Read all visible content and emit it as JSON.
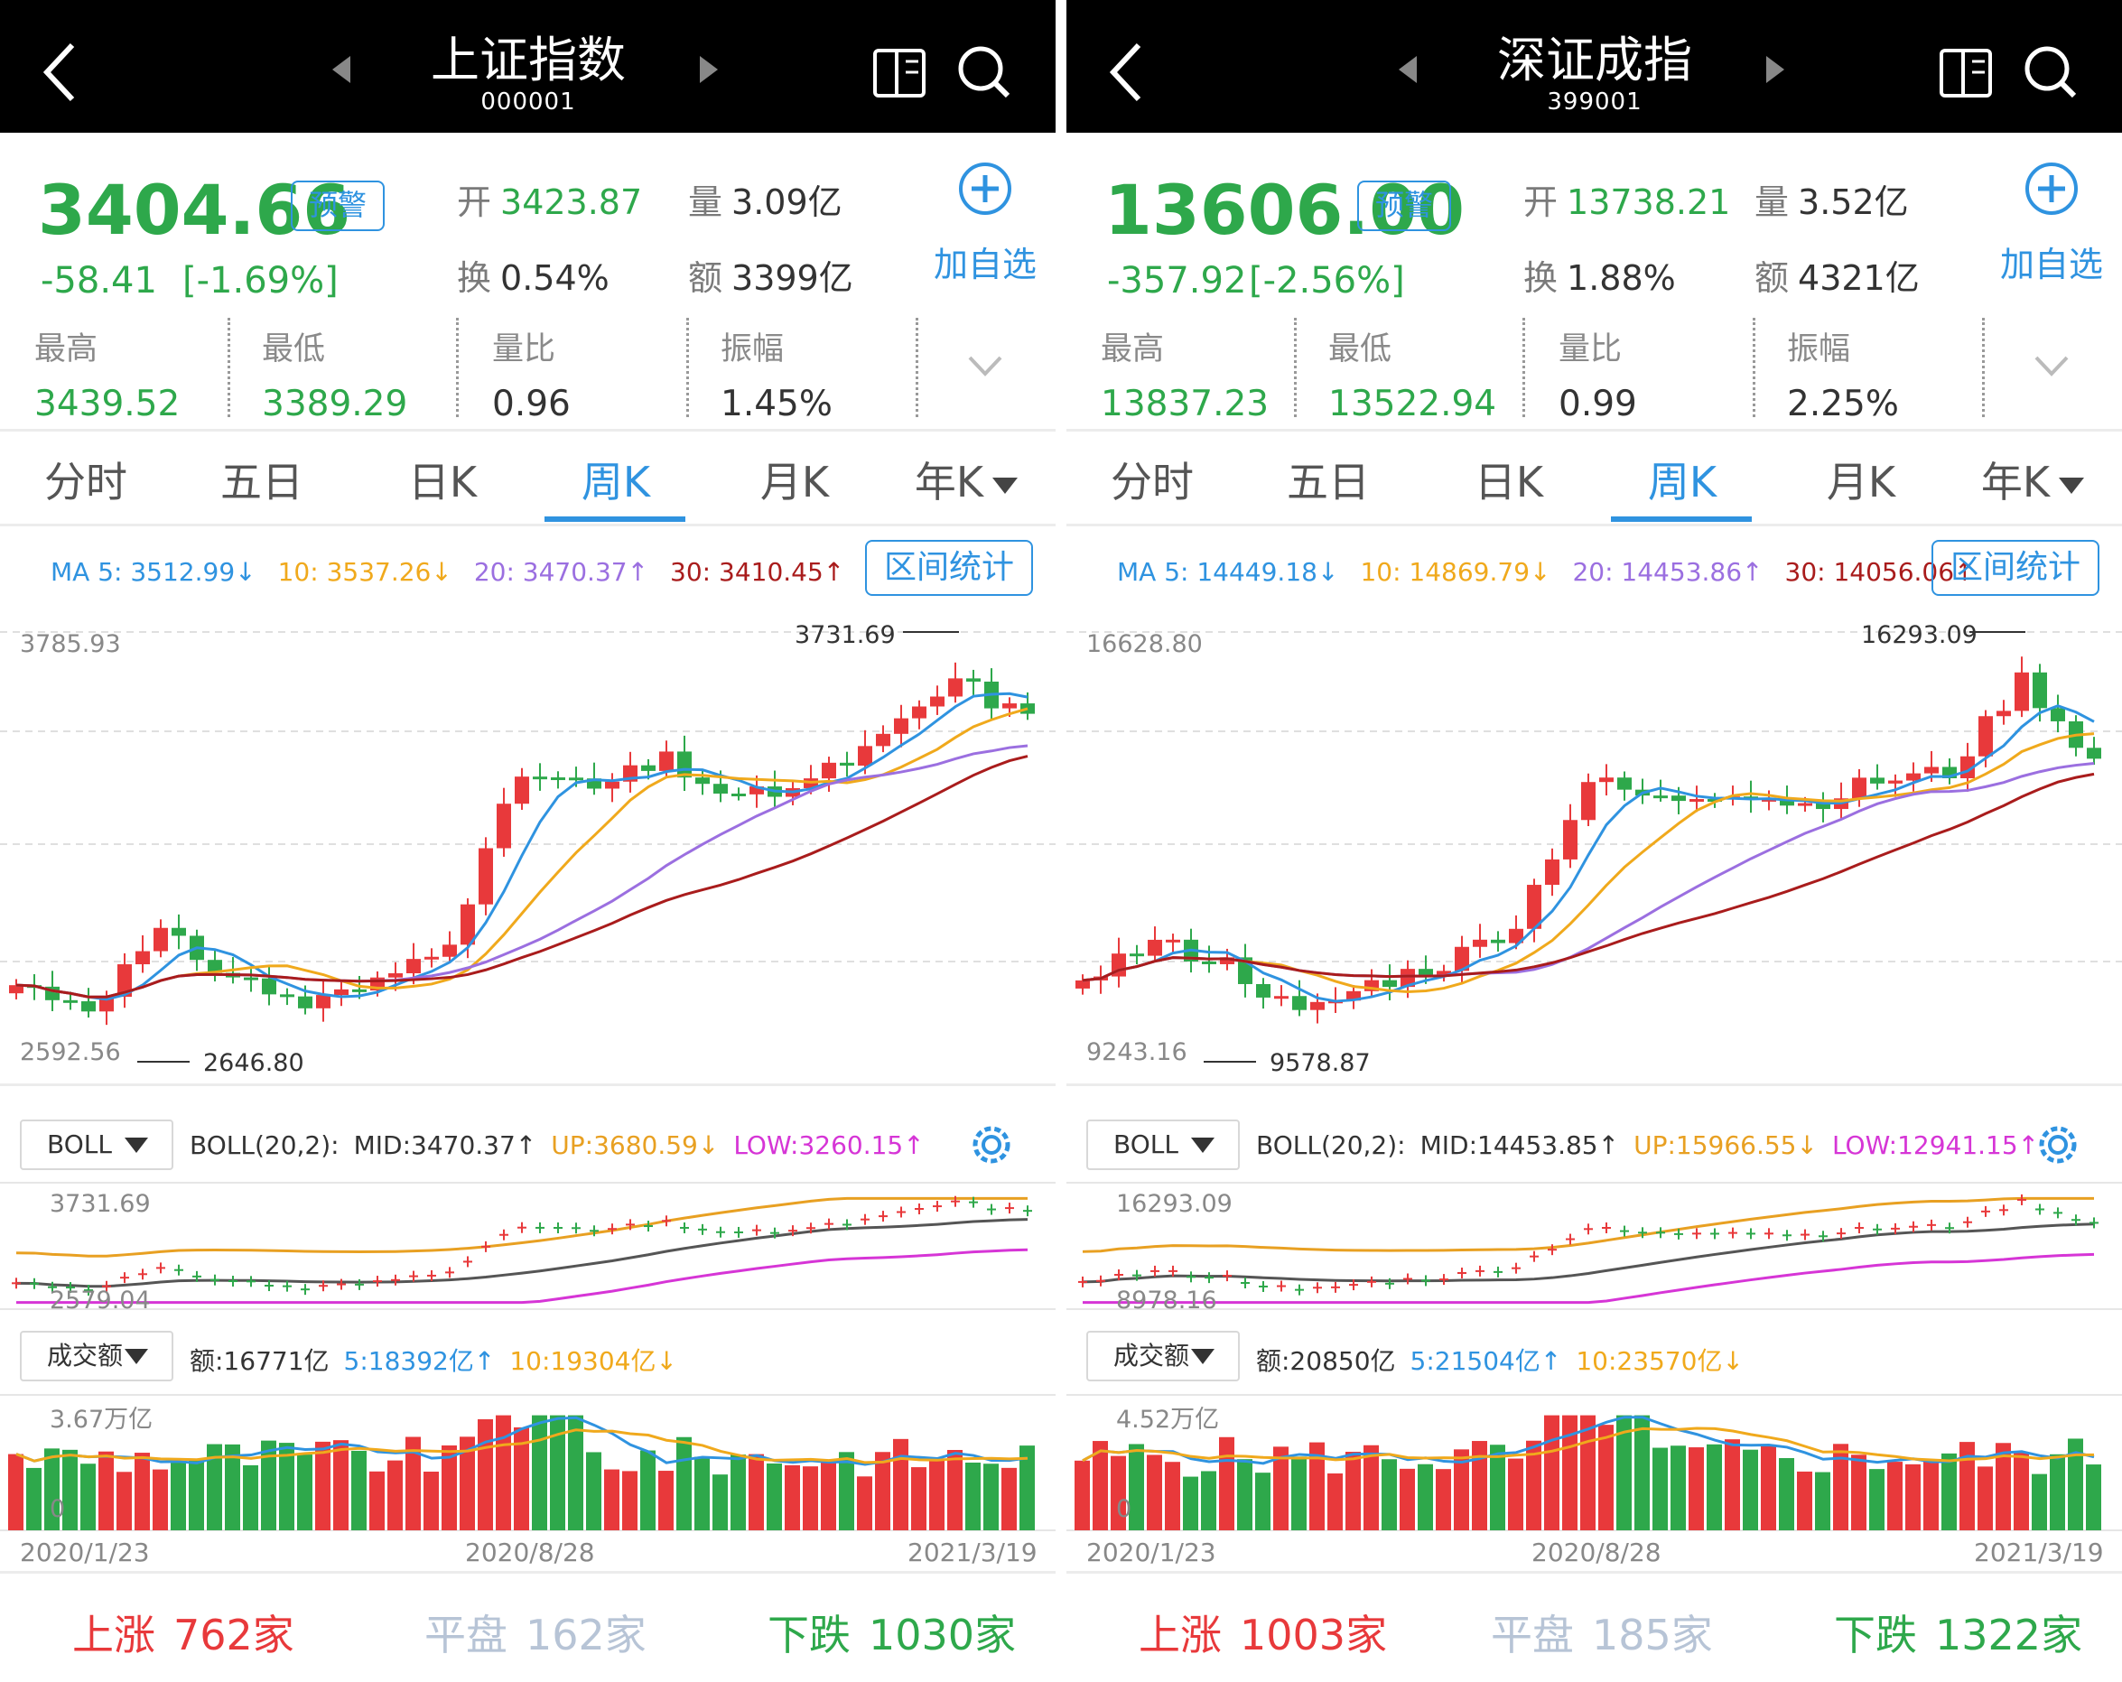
{
  "colors": {
    "up": "#e8393b",
    "down": "#2ea84b",
    "accent": "#2f93e0",
    "ma5": "#2f93e0",
    "ma10": "#f0a91c",
    "ma20": "#9b6fe0",
    "ma30": "#a91c1c",
    "boll_mid": "#555555",
    "boll_up": "#e8a022",
    "boll_low": "#d635d6",
    "flat": "#b7c4d6"
  },
  "icons": {
    "back": "chevron-left-icon",
    "prev": "triangle-left-icon",
    "next": "triangle-right-icon",
    "phone": "phone-screen-icon",
    "search": "search-icon",
    "add": "plus-circle-icon",
    "expand": "chevron-down-icon",
    "dropdown": "triangle-down-icon",
    "settings": "gear-icon"
  },
  "panels": [
    {
      "header": {
        "title": "上证指数",
        "code": "000001"
      },
      "quote": {
        "price": "3404.66",
        "warn": "预警",
        "change": "-58.41",
        "change_pct": "[-1.69%]",
        "open_label": "开",
        "open": "3423.87",
        "vol_label": "量",
        "vol": "3.09亿",
        "turn_label": "换",
        "turn": "0.54%",
        "amt_label": "额",
        "amt": "3399亿",
        "add_label": "加自选"
      },
      "stats": [
        {
          "label": "最高",
          "value": "3439.52"
        },
        {
          "label": "最低",
          "value": "3389.29"
        },
        {
          "label": "量比",
          "value": "0.96"
        },
        {
          "label": "振幅",
          "value": "1.45%"
        }
      ],
      "tabs": [
        "分时",
        "五日",
        "日K",
        "周K",
        "月K",
        "年K"
      ],
      "active_tab": 3,
      "ma": {
        "ma5": "MA 5: 3512.99↓",
        "ma10": "10: 3537.26↓",
        "ma20": "20: 3470.37↑",
        "ma30": "30: 3410.45↑"
      },
      "range_btn": "区间统计",
      "main_axis": {
        "top": "3785.93",
        "bottom": "2592.56",
        "max_label": "3731.69",
        "min_label": "2646.80"
      },
      "boll": {
        "name": "BOLL",
        "desc": "BOLL(20,2):",
        "mid": "MID:3470.37↑",
        "up": "UP:3680.59↓",
        "low": "LOW:3260.15↑",
        "top": "3731.69",
        "bottom": "2579.04"
      },
      "volume": {
        "name": "成交额",
        "amt": "额:16771亿",
        "v5": "5:18392亿↑",
        "v10": "10:19304亿↓",
        "top": "3.67万亿",
        "zero": "0"
      },
      "dates": [
        "2020/1/23",
        "2020/8/28",
        "2021/3/19"
      ],
      "market": {
        "up_label": "上涨",
        "up": "762家",
        "flat_label": "平盘",
        "flat": "162家",
        "down_label": "下跌",
        "down": "1030家"
      }
    },
    {
      "header": {
        "title": "深证成指",
        "code": "399001"
      },
      "quote": {
        "price": "13606.00",
        "warn": "预警",
        "change": "-357.92",
        "change_pct": "[-2.56%]",
        "open_label": "开",
        "open": "13738.21",
        "vol_label": "量",
        "vol": "3.52亿",
        "turn_label": "换",
        "turn": "1.88%",
        "amt_label": "额",
        "amt": "4321亿",
        "add_label": "加自选"
      },
      "stats": [
        {
          "label": "最高",
          "value": "13837.23"
        },
        {
          "label": "最低",
          "value": "13522.94"
        },
        {
          "label": "量比",
          "value": "0.99"
        },
        {
          "label": "振幅",
          "value": "2.25%"
        }
      ],
      "tabs": [
        "分时",
        "五日",
        "日K",
        "周K",
        "月K",
        "年K"
      ],
      "active_tab": 3,
      "ma": {
        "ma5": "MA 5: 14449.18↓",
        "ma10": "10: 14869.79↓",
        "ma20": "20: 14453.86↑",
        "ma30": "30: 14056.06↑"
      },
      "range_btn": "区间统计",
      "main_axis": {
        "top": "16628.80",
        "bottom": "9243.16",
        "max_label": "16293.09",
        "min_label": "9578.87"
      },
      "boll": {
        "name": "BOLL",
        "desc": "BOLL(20,2):",
        "mid": "MID:14453.85↑",
        "up": "UP:15966.55↓",
        "low": "LOW:12941.15↑",
        "top": "16293.09",
        "bottom": "8978.16"
      },
      "volume": {
        "name": "成交额",
        "amt": "额:20850亿",
        "v5": "5:21504亿↑",
        "v10": "10:23570亿↓",
        "top": "4.52万亿",
        "zero": "0"
      },
      "dates": [
        "2020/1/23",
        "2020/8/28",
        "2021/3/19"
      ],
      "market": {
        "up_label": "上涨",
        "up": "1003家",
        "flat_label": "平盘",
        "flat": "185家",
        "down_label": "下跌",
        "down": "1322家"
      }
    }
  ]
}
